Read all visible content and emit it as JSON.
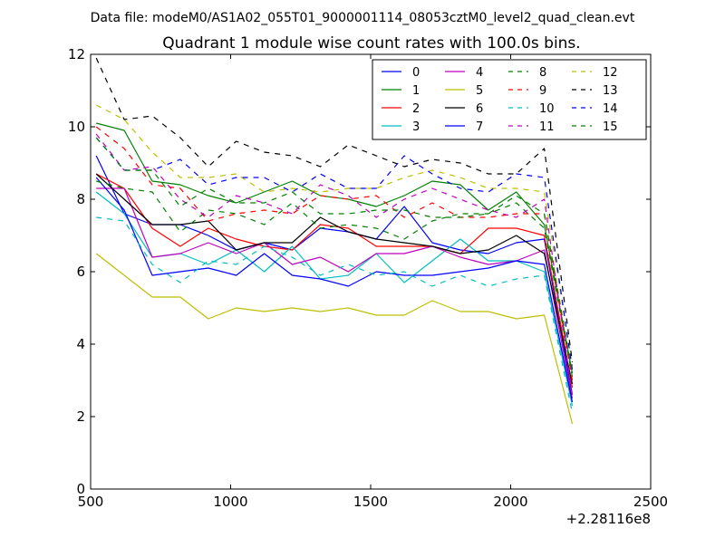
{
  "suptitle": "Data file: modeM0/AS1A02_055T01_9000001114_08053cztM0_level2_quad_clean.evt",
  "chart_data": {
    "type": "line",
    "title": "Quadrant 1 module wise count rates with 100.0s bins.",
    "xlabel": "",
    "ylabel": "",
    "x_offset_label": "+2.28116e8",
    "xlim": [
      500,
      2500
    ],
    "ylim": [
      0,
      12
    ],
    "x_ticks": [
      500,
      1000,
      1500,
      2000,
      2500
    ],
    "y_ticks": [
      0,
      2,
      4,
      6,
      8,
      10,
      12
    ],
    "grid": false,
    "legend_position": "top-right",
    "x": [
      520,
      620,
      720,
      820,
      920,
      1020,
      1120,
      1220,
      1320,
      1420,
      1520,
      1620,
      1720,
      1820,
      1920,
      2020,
      2120,
      2220
    ],
    "series": [
      {
        "name": "0",
        "color": "#0000ff",
        "dash": "solid",
        "values": [
          9.2,
          7.6,
          7.3,
          7.3,
          7.0,
          6.6,
          6.8,
          6.6,
          7.2,
          7.1,
          6.9,
          7.8,
          6.8,
          6.6,
          6.5,
          6.8,
          6.9,
          2.6
        ]
      },
      {
        "name": "1",
        "color": "#008000",
        "dash": "solid",
        "values": [
          10.1,
          9.9,
          8.5,
          8.4,
          8.1,
          7.9,
          8.2,
          8.5,
          8.1,
          8.0,
          7.8,
          8.1,
          8.5,
          8.4,
          7.7,
          8.2,
          7.3,
          3.2
        ]
      },
      {
        "name": "2",
        "color": "#ff0000",
        "dash": "solid",
        "values": [
          8.7,
          8.3,
          7.2,
          6.7,
          7.2,
          6.9,
          6.7,
          6.6,
          7.3,
          7.2,
          6.7,
          6.7,
          6.7,
          6.5,
          7.2,
          7.2,
          7.0,
          2.8
        ]
      },
      {
        "name": "3",
        "color": "#00bfbf",
        "dash": "solid",
        "values": [
          8.2,
          7.6,
          6.4,
          6.5,
          6.2,
          6.6,
          6.0,
          6.7,
          5.8,
          5.9,
          6.5,
          5.7,
          6.3,
          6.9,
          6.3,
          6.3,
          6.0,
          2.3
        ]
      },
      {
        "name": "4",
        "color": "#bf00bf",
        "dash": "solid",
        "values": [
          8.3,
          8.3,
          6.4,
          6.5,
          6.8,
          6.5,
          6.8,
          6.2,
          6.4,
          6.0,
          6.5,
          6.5,
          6.7,
          6.4,
          6.2,
          6.3,
          6.6,
          2.5
        ]
      },
      {
        "name": "5",
        "color": "#bfbf00",
        "dash": "solid",
        "values": [
          6.5,
          5.9,
          5.3,
          5.3,
          4.7,
          5.0,
          4.9,
          5.0,
          4.9,
          5.0,
          4.8,
          4.8,
          5.2,
          4.9,
          4.9,
          4.7,
          4.8,
          1.8
        ]
      },
      {
        "name": "6",
        "color": "#000000",
        "dash": "solid",
        "values": [
          8.7,
          8.0,
          7.3,
          7.3,
          7.4,
          6.6,
          6.8,
          6.8,
          7.5,
          7.1,
          6.9,
          6.8,
          6.7,
          6.5,
          6.6,
          7.0,
          6.5,
          2.9
        ]
      },
      {
        "name": "7",
        "color": "#0000ff",
        "dash": "solid",
        "values": [
          8.6,
          7.7,
          5.9,
          6.0,
          6.1,
          5.9,
          6.5,
          5.9,
          5.8,
          5.6,
          6.0,
          5.9,
          5.9,
          6.0,
          6.1,
          6.3,
          6.2,
          2.4
        ]
      },
      {
        "name": "8",
        "color": "#008000",
        "dash": "dashed",
        "values": [
          8.5,
          8.3,
          8.2,
          7.1,
          7.7,
          7.6,
          7.3,
          7.9,
          7.2,
          7.3,
          7.2,
          6.9,
          7.4,
          7.6,
          7.6,
          7.9,
          7.2,
          3.1
        ]
      },
      {
        "name": "9",
        "color": "#ff0000",
        "dash": "dashed",
        "values": [
          10.0,
          9.4,
          8.4,
          8.3,
          7.4,
          7.6,
          7.7,
          7.6,
          8.1,
          8.0,
          8.1,
          7.5,
          7.9,
          7.5,
          7.5,
          7.6,
          7.6,
          3.0
        ]
      },
      {
        "name": "10",
        "color": "#00bfbf",
        "dash": "dashed",
        "values": [
          7.5,
          7.4,
          6.2,
          5.7,
          6.3,
          6.2,
          6.7,
          6.4,
          5.9,
          6.2,
          5.9,
          6.0,
          5.6,
          5.9,
          5.6,
          5.8,
          5.9,
          2.1
        ]
      },
      {
        "name": "11",
        "color": "#bf00bf",
        "dash": "dashed",
        "values": [
          9.8,
          8.8,
          8.9,
          8.0,
          7.5,
          8.1,
          7.9,
          7.6,
          8.4,
          8.1,
          7.5,
          8.0,
          8.3,
          8.0,
          7.7,
          7.5,
          8.0,
          2.6
        ]
      },
      {
        "name": "12",
        "color": "#bfbf00",
        "dash": "dashed",
        "values": [
          10.6,
          10.2,
          9.3,
          8.6,
          8.6,
          8.7,
          8.2,
          8.3,
          8.2,
          8.3,
          8.3,
          8.6,
          8.8,
          8.6,
          8.3,
          8.3,
          8.2,
          3.4
        ]
      },
      {
        "name": "13",
        "color": "#000000",
        "dash": "dashed",
        "values": [
          11.9,
          10.2,
          10.3,
          9.7,
          8.9,
          9.6,
          9.3,
          9.2,
          8.9,
          9.5,
          9.2,
          8.9,
          9.1,
          9.0,
          8.7,
          8.7,
          9.4,
          3.5
        ]
      },
      {
        "name": "14",
        "color": "#0000ff",
        "dash": "dashed",
        "values": [
          9.7,
          8.8,
          8.8,
          9.1,
          8.4,
          8.6,
          8.6,
          8.2,
          8.7,
          8.3,
          8.3,
          9.2,
          8.7,
          8.3,
          8.2,
          8.7,
          8.6,
          3.3
        ]
      },
      {
        "name": "15",
        "color": "#008000",
        "dash": "dashed",
        "values": [
          9.7,
          8.8,
          8.8,
          7.8,
          8.3,
          7.9,
          7.9,
          8.2,
          7.6,
          7.6,
          7.7,
          7.7,
          7.5,
          7.5,
          7.6,
          8.1,
          7.6,
          3.2
        ]
      }
    ]
  }
}
